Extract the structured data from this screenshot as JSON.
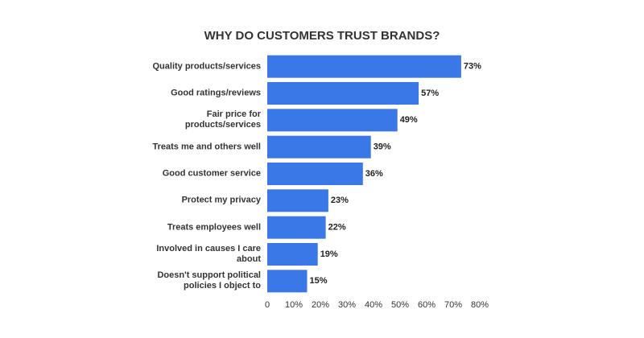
{
  "chart_data": {
    "type": "barh",
    "title": "WHY DO CUSTOMERS TRUST BRANDS?",
    "categories": [
      "Quality products/services",
      "Good ratings/reviews",
      "Fair price for\nproducts/services",
      "Treats me and others well",
      "Good customer service",
      "Protect my privacy",
      "Treats employees well",
      "Involved in causes I care\nabout",
      "Doesn't support political\npolicies I object to"
    ],
    "values": [
      73,
      57,
      49,
      39,
      36,
      23,
      22,
      19,
      15
    ],
    "value_labels": [
      "73%",
      "57%",
      "49%",
      "39%",
      "36%",
      "23%",
      "22%",
      "19%",
      "15%"
    ],
    "color": "#3b78e7",
    "xlim": [
      0,
      80
    ],
    "xticks": [
      0,
      {
        "value": 10,
        "label": "10%"
      },
      {
        "value": 20,
        "label": "20%"
      },
      {
        "value": 30,
        "label": "30%"
      },
      {
        "value": 40,
        "label": "40%"
      },
      {
        "value": 50,
        "label": "50%"
      },
      {
        "value": 60,
        "label": "60%"
      },
      {
        "value": 70,
        "label": "70%"
      },
      {
        "value": 80,
        "label": "80%"
      }
    ]
  }
}
